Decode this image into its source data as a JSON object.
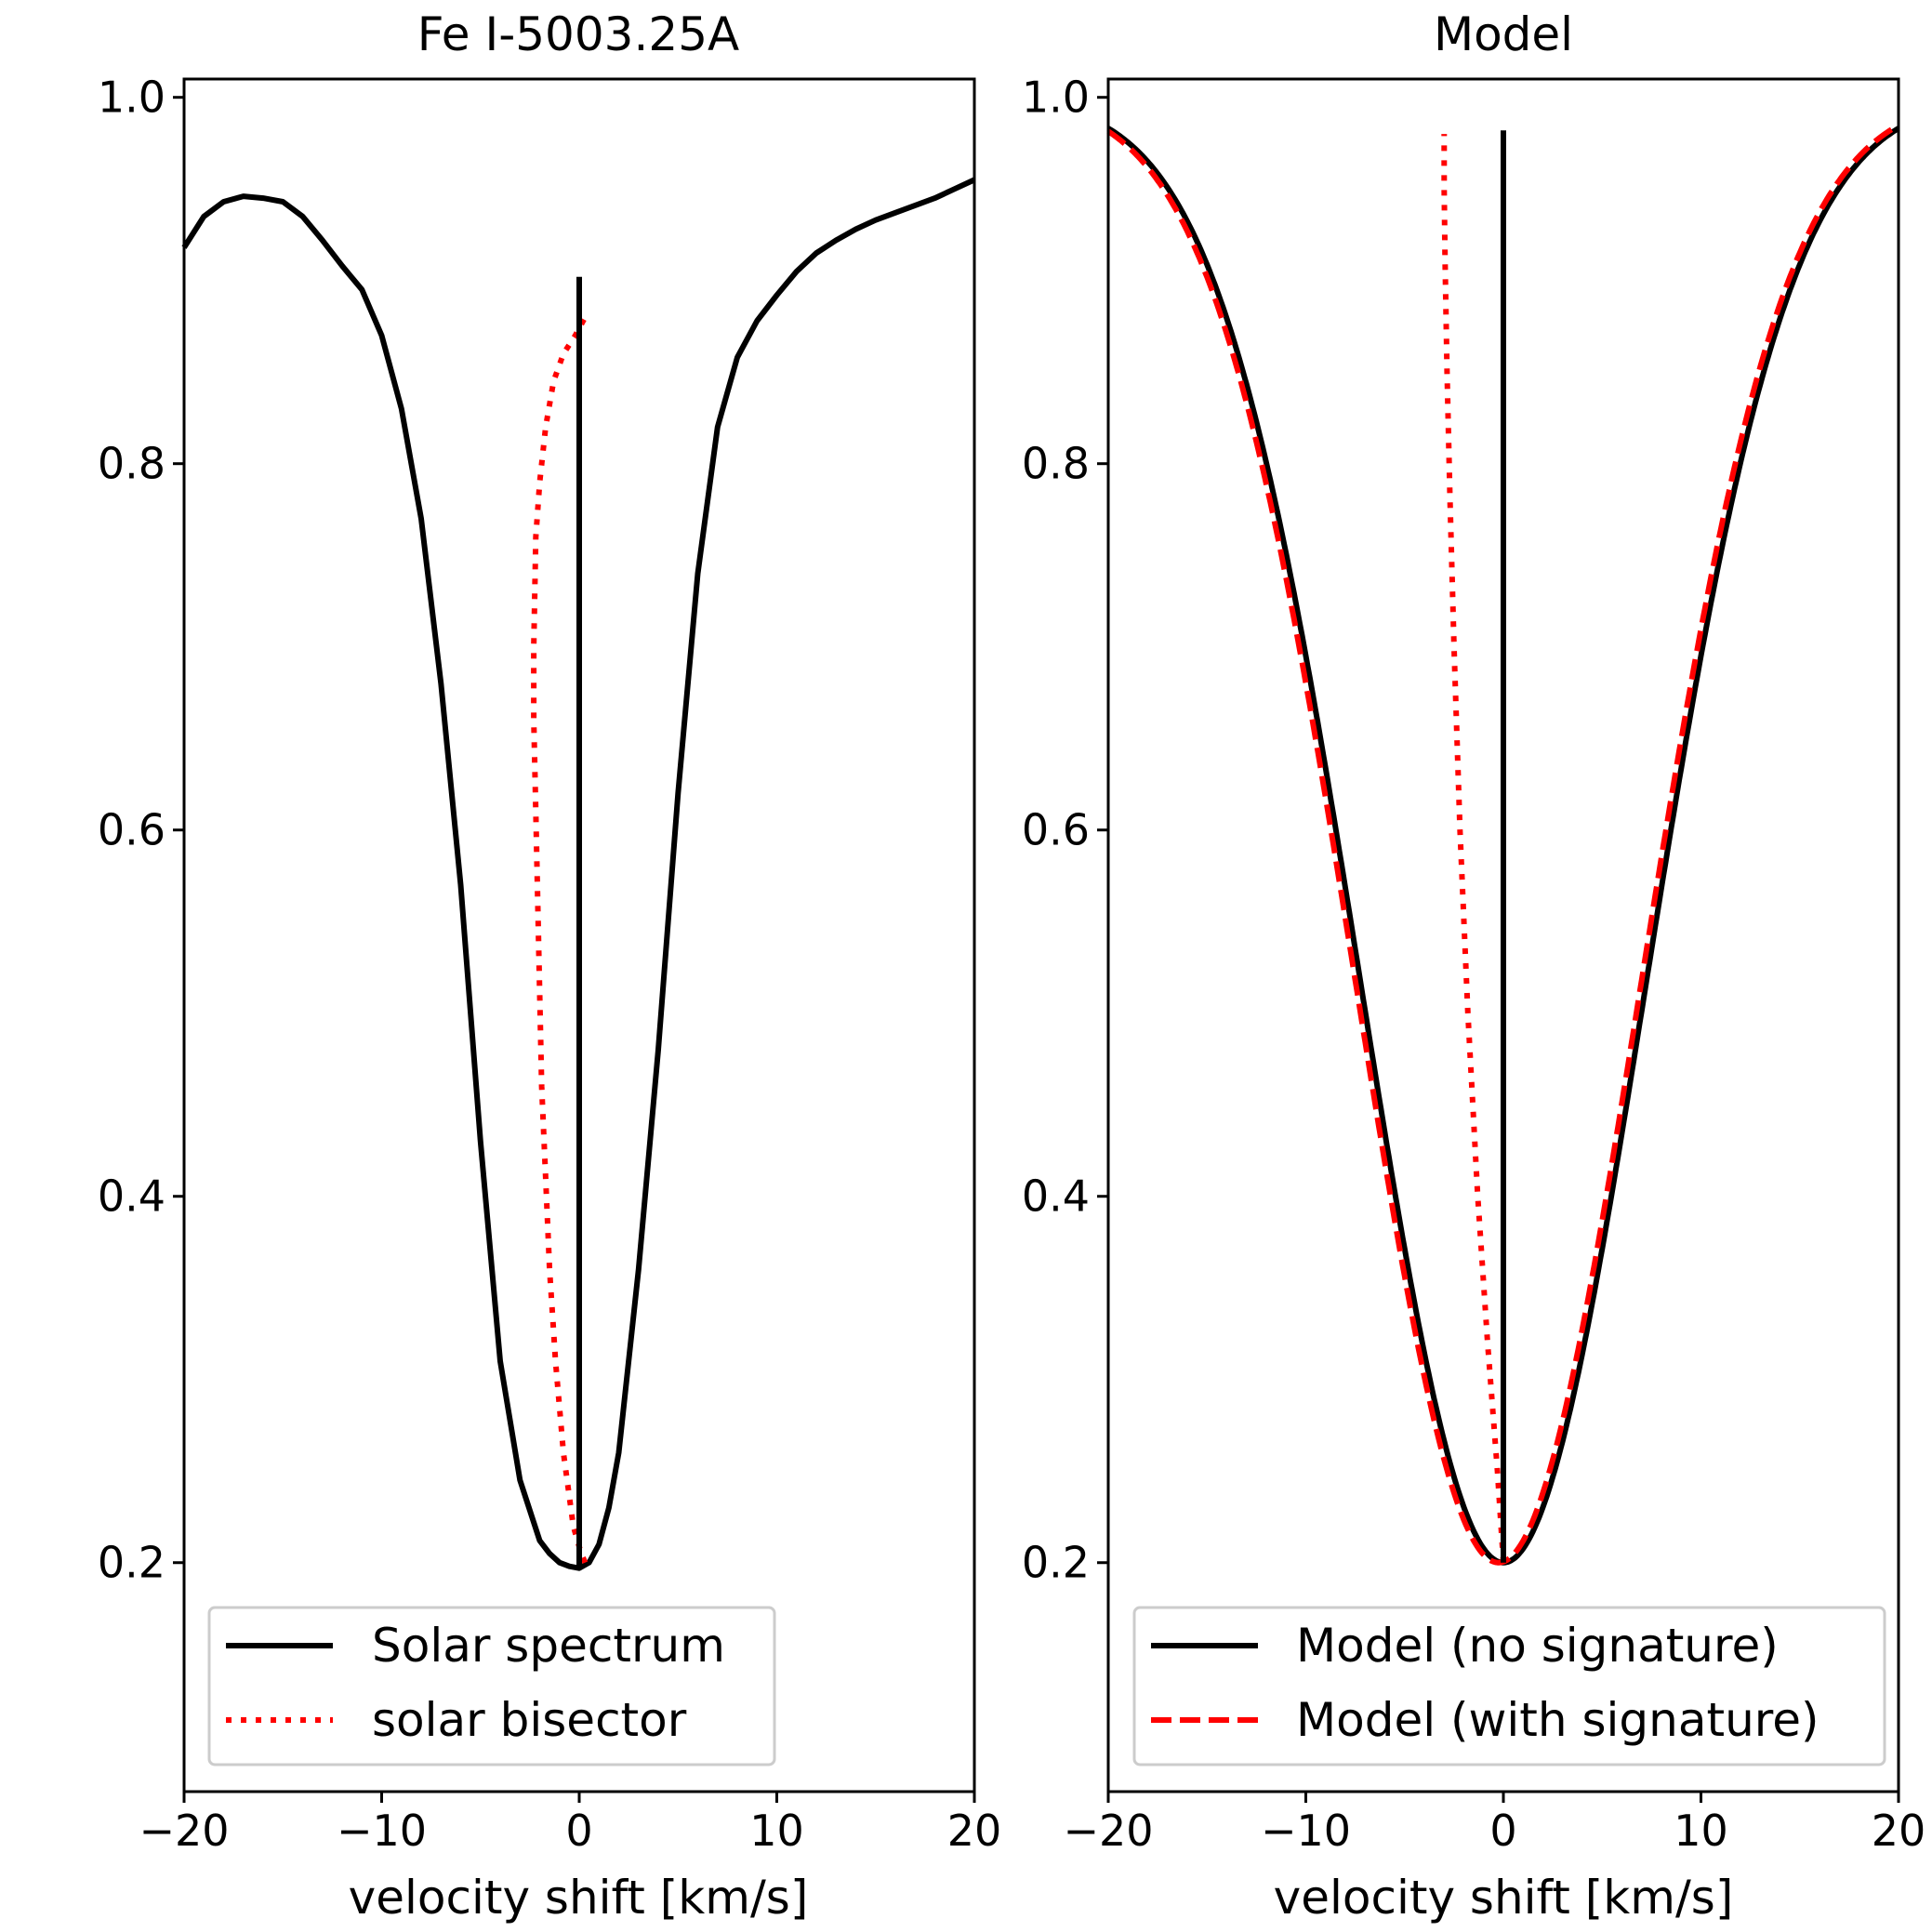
{
  "chart_data": [
    {
      "type": "line",
      "title": "Fe I-5003.25A",
      "xlabel": "velocity shift [km/s]",
      "ylabel": "",
      "xlim": [
        -20,
        20
      ],
      "ylim": [
        0.075,
        1.01
      ],
      "xticks": [
        -20,
        -10,
        0,
        10,
        20
      ],
      "xtick_labels": [
        "−20",
        "−10",
        "0",
        "10",
        "20"
      ],
      "yticks": [
        0.2,
        0.4,
        0.6,
        0.8,
        1.0
      ],
      "ytick_labels": [
        "0.2",
        "0.4",
        "0.6",
        "0.8",
        "1.0"
      ],
      "series": [
        {
          "name": "Solar spectrum",
          "style": "solid",
          "color": "#000000",
          "x": [
            -20,
            -19,
            -18,
            -17,
            -16,
            -15,
            -14,
            -13,
            -12,
            -11,
            -10,
            -9,
            -8,
            -7,
            -6,
            -5,
            -4,
            -3,
            -2,
            -1.5,
            -1,
            -0.5,
            0,
            0.5,
            1,
            1.5,
            2,
            3,
            4,
            5,
            6,
            7,
            8,
            9,
            10,
            11,
            12,
            13,
            14,
            15,
            16,
            17,
            18,
            19,
            20
          ],
          "y": [
            0.918,
            0.935,
            0.943,
            0.946,
            0.945,
            0.943,
            0.935,
            0.922,
            0.908,
            0.895,
            0.87,
            0.83,
            0.77,
            0.68,
            0.57,
            0.43,
            0.31,
            0.245,
            0.212,
            0.205,
            0.2,
            0.198,
            0.197,
            0.2,
            0.21,
            0.23,
            0.26,
            0.36,
            0.48,
            0.62,
            0.74,
            0.82,
            0.858,
            0.878,
            0.892,
            0.905,
            0.915,
            0.922,
            0.928,
            0.933,
            0.937,
            0.941,
            0.945,
            0.95,
            0.955
          ]
        },
        {
          "name": "solar bisector",
          "style": "dotted",
          "color": "#ff0000",
          "x": [
            0.3,
            0.1,
            -0.3,
            -0.8,
            -1.2,
            -1.5,
            -1.7,
            -1.9,
            -2.0,
            -2.1,
            -2.2,
            -2.3,
            -2.3,
            -2.25,
            -2.2,
            -2.0,
            -1.7,
            -1.3,
            -0.8,
            -0.2,
            0.3
          ],
          "y": [
            0.2,
            0.205,
            0.22,
            0.26,
            0.31,
            0.36,
            0.41,
            0.46,
            0.51,
            0.56,
            0.61,
            0.66,
            0.7,
            0.73,
            0.76,
            0.79,
            0.82,
            0.845,
            0.86,
            0.87,
            0.88
          ]
        },
        {
          "name": "line center",
          "style": "vertical",
          "color": "#000000",
          "x": [
            0,
            0
          ],
          "y": [
            0.197,
            0.902
          ]
        }
      ],
      "legend": {
        "position": "lower-left",
        "entries": [
          {
            "label": "Solar spectrum",
            "style": "solid",
            "color": "#000000"
          },
          {
            "label": "solar bisector",
            "style": "dotted",
            "color": "#ff0000"
          }
        ]
      }
    },
    {
      "type": "line",
      "title": "Model",
      "xlabel": "velocity shift [km/s]",
      "ylabel": "",
      "xlim": [
        -20,
        20
      ],
      "ylim": [
        0.075,
        1.01
      ],
      "xticks": [
        -20,
        -10,
        0,
        10,
        20
      ],
      "xtick_labels": [
        "−20",
        "−10",
        "0",
        "10",
        "20"
      ],
      "yticks": [
        0.2,
        0.4,
        0.6,
        0.8,
        1.0
      ],
      "ytick_labels": [
        "0.2",
        "0.4",
        "0.6",
        "0.8",
        "1.0"
      ],
      "series": [
        {
          "name": "Model (no signature)",
          "style": "solid",
          "color": "#000000",
          "model": {
            "depth": 0.8,
            "center": 0,
            "sigma": 7.2
          }
        },
        {
          "name": "Model (with signature)",
          "style": "dashed",
          "color": "#ff0000",
          "model": {
            "depth": 0.8,
            "center": -0.25,
            "sigma": 7.2
          }
        },
        {
          "name": "model bisector",
          "style": "dotted",
          "color": "#ff0000",
          "x": [
            0,
            -0.3,
            -0.8,
            -1.3,
            -1.8,
            -2.2,
            -2.5,
            -2.7,
            -2.85,
            -2.95,
            -3.0,
            -3.0
          ],
          "y": [
            0.2,
            0.25,
            0.32,
            0.4,
            0.5,
            0.6,
            0.7,
            0.78,
            0.85,
            0.91,
            0.95,
            0.98
          ]
        },
        {
          "name": "line center",
          "style": "vertical",
          "color": "#000000",
          "x": [
            0,
            0
          ],
          "y": [
            0.2,
            0.982
          ]
        }
      ],
      "legend": {
        "position": "lower-left",
        "entries": [
          {
            "label": "Model (no signature)",
            "style": "solid",
            "color": "#000000"
          },
          {
            "label": "Model (with signature)",
            "style": "dashed",
            "color": "#ff0000"
          }
        ]
      }
    }
  ]
}
